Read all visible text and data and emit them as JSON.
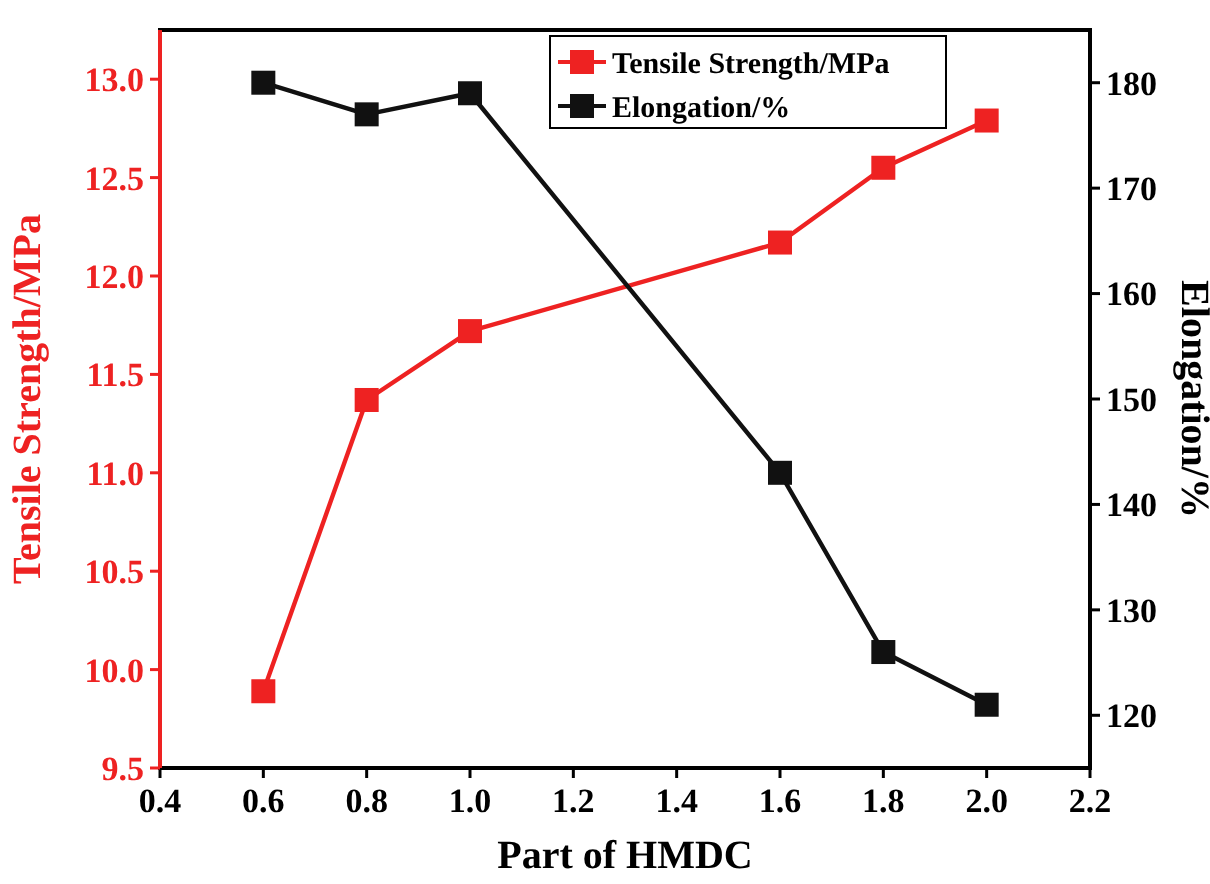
{
  "chart_data": {
    "type": "line",
    "xlabel": "Part of HMDC",
    "ylabel": "Tensile Strength/MPa",
    "y2label": "Elongation/%",
    "x": [
      0.6,
      0.8,
      1.0,
      1.6,
      1.8,
      2.0
    ],
    "series": [
      {
        "name": "Tensile Strength/MPa",
        "color": "#ee2222",
        "values": [
          9.89,
          11.37,
          11.72,
          12.17,
          12.55,
          12.79
        ]
      },
      {
        "name": "Elongation/%",
        "color": "#111111",
        "axis": "y2",
        "values": [
          180,
          177,
          179,
          143,
          126,
          121
        ]
      }
    ],
    "xlim": [
      0.4,
      2.2
    ],
    "xticks": [
      {
        "value": 0.4,
        "label": "0.4"
      },
      {
        "value": 0.6,
        "label": "0.6"
      },
      {
        "value": 0.8,
        "label": "0.8"
      },
      {
        "value": 1.0,
        "label": "1.0"
      },
      {
        "value": 1.2,
        "label": "1.2"
      },
      {
        "value": 1.4,
        "label": "1.4"
      },
      {
        "value": 1.6,
        "label": "1.6"
      },
      {
        "value": 1.8,
        "label": "1.8"
      },
      {
        "value": 2.0,
        "label": "2.0"
      },
      {
        "value": 2.2,
        "label": "2.2"
      }
    ],
    "ylim": [
      9.5,
      13.25
    ],
    "yticks": [
      {
        "value": 9.5,
        "label": "9.5"
      },
      {
        "value": 10,
        "label": "10.0"
      },
      {
        "value": 10.5,
        "label": "10.5"
      },
      {
        "value": 11,
        "label": "11.0"
      },
      {
        "value": 11.5,
        "label": "11.5"
      },
      {
        "value": 12,
        "label": "12.0"
      },
      {
        "value": 12.5,
        "label": "12.5"
      },
      {
        "value": 13,
        "label": "13.0"
      }
    ],
    "y2lim": [
      115,
      185
    ],
    "y2ticks": [
      120,
      130,
      140,
      150,
      160,
      170,
      180
    ],
    "legend": "top right",
    "marker": "square",
    "line_style": "solid",
    "grid": false
  }
}
